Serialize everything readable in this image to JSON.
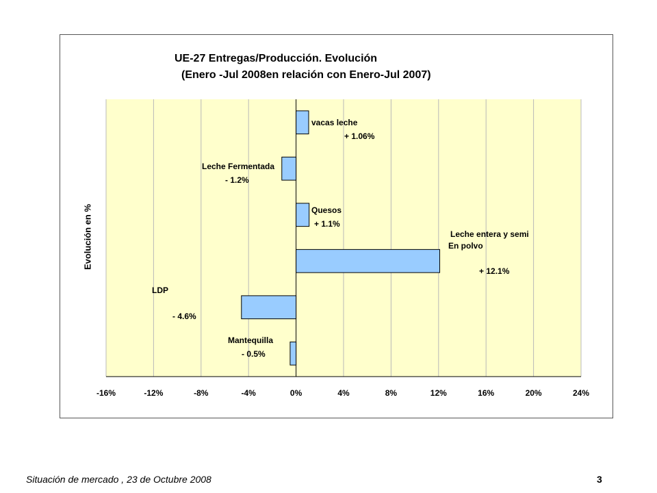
{
  "chart_data": {
    "type": "bar",
    "orientation": "horizontal",
    "title": "UE-27 Entregas/Producción. Evolución",
    "subtitle": "(Enero -Jul 2008en relación con Enero-Jul 2007)",
    "ylabel": "Evolución en %",
    "xlabel": "",
    "xlim": [
      -16,
      24
    ],
    "x_ticks": [
      "-16%",
      "-12%",
      "-8%",
      "-4%",
      "0%",
      "4%",
      "8%",
      "12%",
      "16%",
      "20%",
      "24%"
    ],
    "grid": true,
    "legend": "none",
    "bar_color": "#99ccff",
    "plot_background": "#ffffcc",
    "categories": [
      "vacas leche",
      "Leche Fermentada",
      "Quesos",
      "Leche entera y semi En polvo",
      "LDP",
      "Mantequilla"
    ],
    "values": [
      1.06,
      -1.2,
      1.1,
      12.1,
      -4.6,
      -0.5
    ],
    "annotations": [
      {
        "lines": [
          "vacas  leche",
          "+ 1.06%"
        ]
      },
      {
        "lines": [
          "Leche Fermentada",
          "- 1.2%"
        ]
      },
      {
        "lines": [
          "Quesos",
          "+ 1.1%"
        ]
      },
      {
        "lines": [
          "Leche entera y semi",
          "En polvo",
          "+ 12.1%"
        ]
      },
      {
        "lines": [
          "LDP",
          "- 4.6%"
        ]
      },
      {
        "lines": [
          "Mantequilla",
          "- 0.5%"
        ]
      }
    ]
  },
  "footer": {
    "text": "Situación de mercado , 23 de  Octubre 2008",
    "page_number": "3"
  }
}
